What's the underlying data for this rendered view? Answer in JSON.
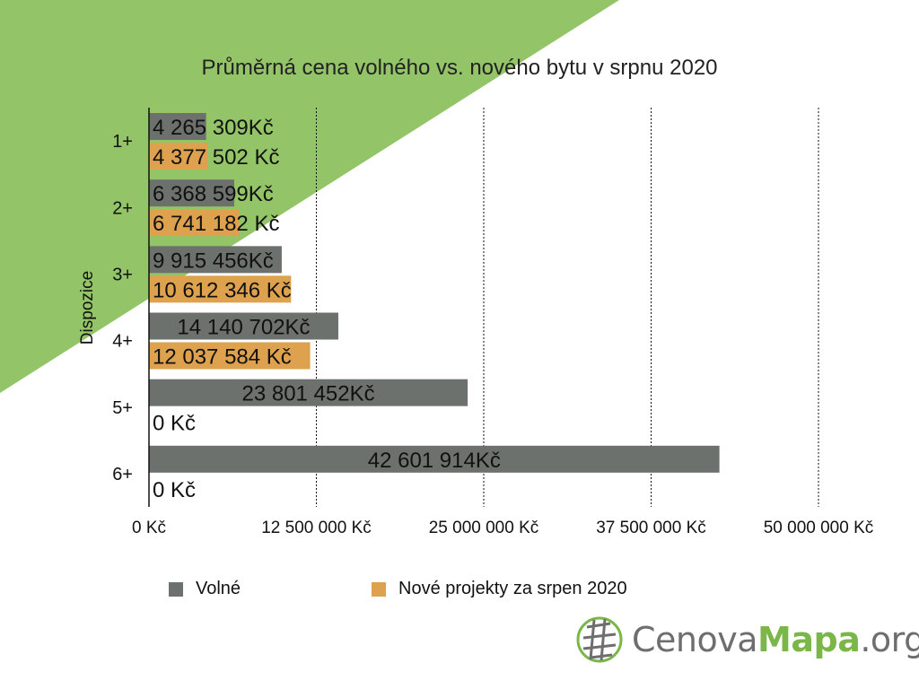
{
  "chart_data": {
    "type": "bar",
    "orientation": "horizontal",
    "title": "Průměrná cena volného vs. nového bytu v srpnu 2020",
    "ylabel": "Dispozice",
    "xlabel": "",
    "categories": [
      "1+",
      "2+",
      "3+",
      "4+",
      "5+",
      "6+"
    ],
    "xlim": [
      0,
      50000000
    ],
    "xticks": [
      0,
      12500000,
      25000000,
      37500000,
      50000000
    ],
    "xtick_labels": [
      "0 Kč",
      "12 500 000 Kč",
      "25 000 000 Kč",
      "37 500 000 Kč",
      "50 000 000 Kč"
    ],
    "grid": "vertical dashed",
    "legend_position": "bottom",
    "series": [
      {
        "name": "Volné",
        "color": "#6d716e",
        "values": [
          4265309,
          6368599,
          9915456,
          14140702,
          23801452,
          42601914
        ],
        "labels": [
          "4 265 309Kč",
          "6 368 599Kč",
          "9 915 456Kč",
          "14 140 702Kč",
          "23 801 452Kč",
          "42 601 914Kč"
        ]
      },
      {
        "name": "Nové projekty za srpen 2020",
        "color": "#dea24f",
        "values": [
          4377502,
          6741182,
          10612346,
          12037584,
          0,
          0
        ],
        "labels": [
          "4 377 502 Kč",
          "6 741 182 Kč",
          "10 612 346 Kč",
          "12 037 584 Kč",
          "0 Kč",
          "0 Kč"
        ]
      }
    ]
  },
  "background": {
    "accent": "#93c467"
  },
  "logo": {
    "part1": "Cenova",
    "part2": "Mapa",
    "part3": ".org",
    "icon": "globe-icon"
  }
}
